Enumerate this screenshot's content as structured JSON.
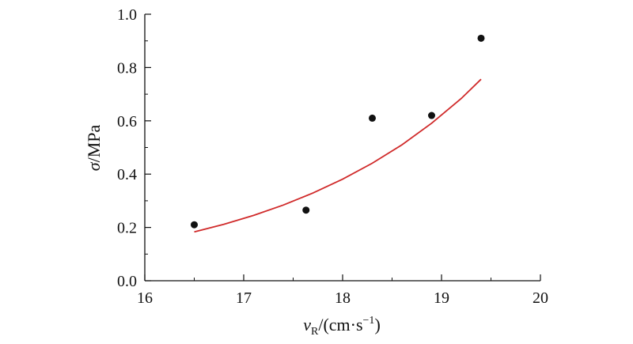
{
  "chart_data": {
    "type": "scatter",
    "xlabel": "vR/(cm·s−1)",
    "ylabel": "σ/MPa",
    "xlim": [
      16,
      20
    ],
    "ylim": [
      0.0,
      1.0
    ],
    "x_ticks": [
      "16",
      "17",
      "18",
      "19",
      "20"
    ],
    "y_ticks": [
      "0.0",
      "0.2",
      "0.4",
      "0.6",
      "0.8",
      "1.0"
    ],
    "grid": false,
    "colors": {
      "points": "#111111",
      "fit_line": "#d02a2a",
      "axes": "#111111"
    },
    "series": [
      {
        "type": "scatter",
        "x": [
          16.5,
          17.63,
          18.3,
          18.9,
          19.4
        ],
        "y": [
          0.21,
          0.265,
          0.61,
          0.62,
          0.91
        ]
      },
      {
        "type": "line",
        "model": "exponential",
        "x": [
          16.5,
          16.8,
          17.1,
          17.4,
          17.7,
          18.0,
          18.3,
          18.6,
          18.9,
          19.2,
          19.4
        ],
        "y": [
          0.183,
          0.212,
          0.245,
          0.284,
          0.329,
          0.381,
          0.441,
          0.51,
          0.591,
          0.684,
          0.756
        ]
      }
    ]
  },
  "axis_titles": {
    "y_sigma": "σ",
    "y_rest": "/MPa",
    "x_v": "v",
    "x_sub": "R",
    "x_mid": "/(cm·s",
    "x_sup": "−1",
    "x_end": ")"
  }
}
